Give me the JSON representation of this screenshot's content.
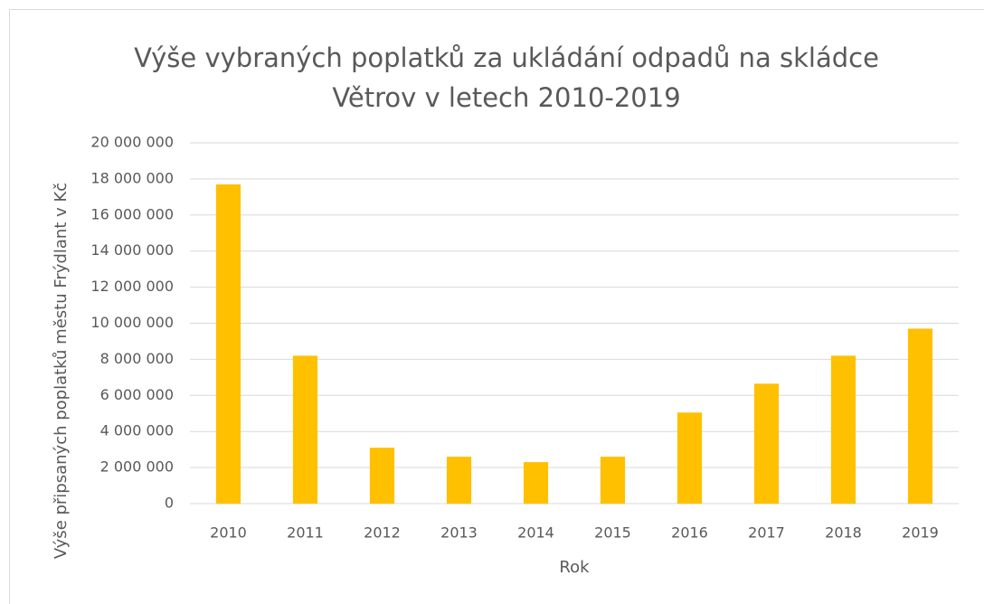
{
  "chart_data": {
    "type": "bar",
    "title": "Výše vybraných  poplatků za ukládání odpadů na skládce Větrov v letech 2010-2019",
    "x_label": "Rok",
    "y_label": "Výše připsaných poplatků městu Frýdlant v Kč",
    "categories": [
      "2010",
      "2011",
      "2012",
      "2013",
      "2014",
      "2015",
      "2016",
      "2017",
      "2018",
      "2019"
    ],
    "values": [
      17700000,
      8200000,
      3100000,
      2600000,
      2300000,
      2600000,
      5050000,
      6650000,
      8200000,
      9700000
    ],
    "color": "#ffc000",
    "ylim": [
      0,
      20000000
    ],
    "yticks": [
      0,
      {
        "value": 2000000,
        "label": "2 000 000"
      },
      {
        "value": 4000000,
        "label": "4 000 000"
      },
      {
        "value": 6000000,
        "label": "6 000 000"
      },
      {
        "value": 8000000,
        "label": "8 000 000"
      },
      {
        "value": 10000000,
        "label": "10 000 000"
      },
      {
        "value": 12000000,
        "label": "12 000 000"
      },
      {
        "value": 14000000,
        "label": "14 000 000"
      },
      {
        "value": 16000000,
        "label": "16 000 000"
      },
      {
        "value": 18000000,
        "label": "18 000 000"
      },
      {
        "value": 20000000,
        "label": "20 000 000"
      }
    ],
    "grid": true
  }
}
